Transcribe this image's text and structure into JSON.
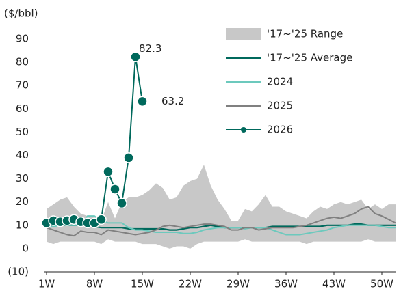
{
  "chart_data": {
    "type": "line",
    "y_label": "($/bbl)",
    "x": [
      1,
      2,
      3,
      4,
      5,
      6,
      7,
      8,
      9,
      10,
      11,
      12,
      13,
      14,
      15,
      16,
      17,
      18,
      19,
      20,
      21,
      22,
      23,
      24,
      25,
      26,
      27,
      28,
      29,
      30,
      31,
      32,
      33,
      34,
      35,
      36,
      37,
      38,
      39,
      40,
      41,
      42,
      43,
      44,
      45,
      46,
      47,
      48,
      49,
      50,
      51,
      52
    ],
    "xlim": [
      1,
      52
    ],
    "xticks": [
      {
        "value": 1,
        "label": "1W"
      },
      {
        "value": 8,
        "label": "8W"
      },
      {
        "value": 15,
        "label": "15W"
      },
      {
        "value": 22,
        "label": "22W"
      },
      {
        "value": 29,
        "label": "29W"
      },
      {
        "value": 36,
        "label": "36W"
      },
      {
        "value": 43,
        "label": "43W"
      },
      {
        "value": 50,
        "label": "50W"
      }
    ],
    "ylim": [
      -10,
      90
    ],
    "yticks": [
      {
        "value": -10,
        "label": "(10)"
      },
      0,
      10,
      20,
      30,
      40,
      50,
      60,
      70,
      80,
      90
    ],
    "range": {
      "name": "'17~'25 Range",
      "color": "#c8c8c8",
      "low": [
        3,
        2,
        3,
        3,
        3,
        3,
        3,
        3,
        2,
        4,
        3,
        3,
        3,
        3,
        2,
        2,
        2,
        1,
        0,
        1,
        1,
        0,
        2,
        3,
        3,
        3,
        3,
        3,
        3,
        4,
        3,
        3,
        3,
        3,
        3,
        3,
        3,
        3,
        2,
        3,
        3,
        3,
        3,
        3,
        3,
        3,
        3,
        4,
        3,
        3,
        3,
        3
      ],
      "high": [
        17,
        19,
        21,
        22,
        18,
        15,
        14,
        14,
        12,
        20,
        13,
        20,
        22,
        22,
        23,
        25,
        28,
        26,
        21,
        22,
        27,
        29,
        30,
        36,
        27,
        21,
        17,
        12,
        12,
        17,
        16,
        19,
        23,
        18,
        18,
        16,
        15,
        14,
        13,
        16,
        18,
        17,
        19,
        20,
        19,
        20,
        21,
        17,
        19,
        17,
        19,
        19
      ]
    },
    "series": [
      {
        "name": "'17~'25 Average",
        "color": "#00695c",
        "width": 2.2,
        "values": [
          10,
          10,
          10,
          10,
          10,
          10,
          9.5,
          9.5,
          9,
          9,
          9,
          9,
          8.5,
          8.5,
          8.5,
          8.5,
          8.5,
          8.5,
          8,
          8,
          8.5,
          9,
          9,
          9.5,
          10,
          9.5,
          9,
          9,
          9,
          9,
          9,
          9,
          9,
          9.5,
          9.5,
          9.5,
          9.5,
          9.5,
          9.5,
          9.5,
          9.5,
          10,
          10,
          10,
          10,
          10.5,
          10.5,
          10,
          10,
          10,
          10,
          10
        ]
      },
      {
        "name": "2024",
        "color": "#6cc9bd",
        "width": 2,
        "values": [
          9,
          9.5,
          10,
          10,
          10,
          10,
          14,
          14,
          12,
          11,
          11,
          11,
          9,
          8,
          8,
          7.5,
          7,
          7,
          7,
          7,
          6.5,
          6.5,
          7,
          8,
          8.5,
          9,
          9,
          9,
          9,
          8.5,
          9,
          9,
          9,
          8,
          7,
          6,
          6,
          6,
          6.5,
          7,
          7.5,
          8,
          9,
          9.5,
          10,
          10,
          10,
          10,
          10,
          9.5,
          9,
          9
        ]
      },
      {
        "name": "2025",
        "color": "#808080",
        "width": 2,
        "values": [
          9,
          8,
          7,
          6,
          5.5,
          7.5,
          7,
          7,
          6,
          8,
          7.5,
          7,
          6.5,
          6,
          6.5,
          7,
          8,
          9.5,
          10,
          9.5,
          9,
          9.5,
          10,
          10.5,
          10.5,
          10,
          9.5,
          8,
          8,
          9,
          9,
          8,
          8.5,
          9,
          9,
          9,
          9,
          9.5,
          10,
          11,
          12,
          13,
          13.5,
          13,
          14,
          15,
          17,
          18,
          15,
          14,
          12.5,
          11
        ]
      },
      {
        "name": "2026",
        "color": "#00695c",
        "width": 2,
        "markers": true,
        "values": [
          11,
          12,
          11.5,
          12,
          12.5,
          11.5,
          11,
          11,
          12.5,
          33,
          25.5,
          19.5,
          39,
          82.3,
          63.2,
          null,
          null,
          null,
          null,
          null,
          null,
          null,
          null,
          null,
          null,
          null,
          null,
          null,
          null,
          null,
          null,
          null,
          null,
          null,
          null,
          null,
          null,
          null,
          null,
          null,
          null,
          null,
          null,
          null,
          null,
          null,
          null,
          null,
          null,
          null,
          null,
          null
        ],
        "value_labels": [
          null,
          null,
          null,
          null,
          null,
          null,
          null,
          null,
          null,
          null,
          null,
          null,
          null,
          "82.3",
          "63.2",
          null,
          null,
          null,
          null,
          null,
          null,
          null,
          null,
          null,
          null,
          null,
          null,
          null,
          null,
          null,
          null,
          null,
          null,
          null,
          null,
          null,
          null,
          null,
          null,
          null,
          null,
          null,
          null,
          null,
          null,
          null,
          null,
          null,
          null,
          null,
          null,
          null
        ]
      }
    ]
  }
}
